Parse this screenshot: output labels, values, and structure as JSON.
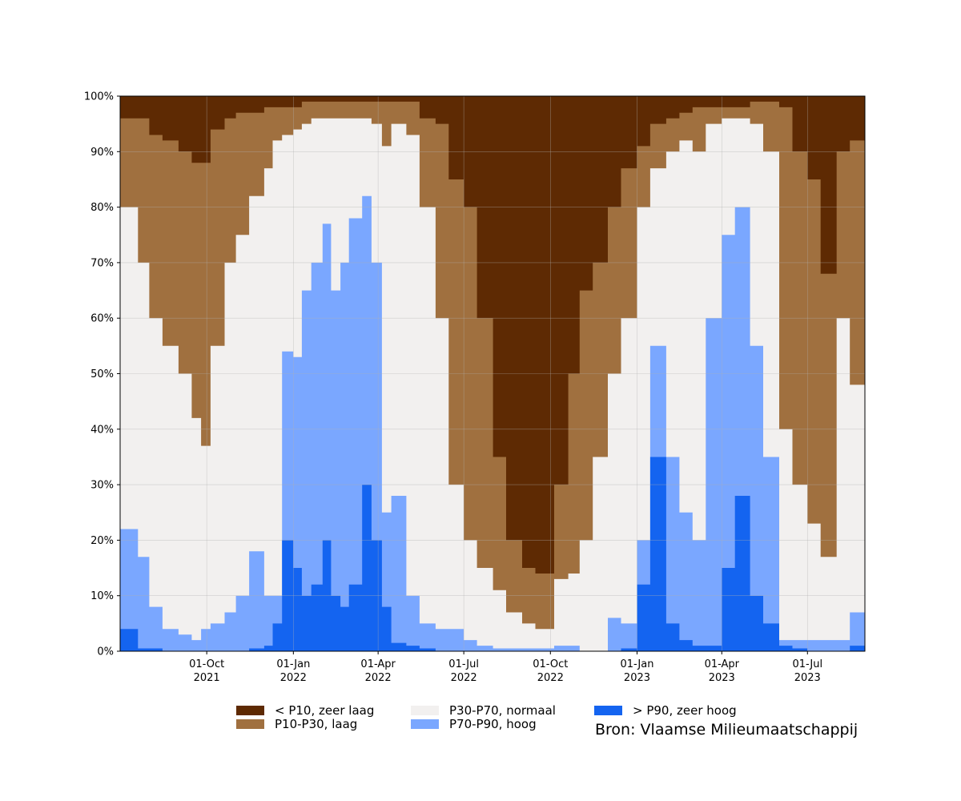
{
  "chart_data": {
    "type": "area",
    "stacked": true,
    "y_unit": "%",
    "ylim": [
      0,
      100
    ],
    "y_ticks": [
      "0%",
      "10%",
      "20%",
      "30%",
      "40%",
      "50%",
      "60%",
      "70%",
      "80%",
      "90%",
      "100%"
    ],
    "x_range": [
      "2021-07-01",
      "2023-08-31"
    ],
    "x_ticks": [
      {
        "date": "2021-10-01",
        "line1": "01-Oct",
        "line2": "2021"
      },
      {
        "date": "2022-01-01",
        "line1": "01-Jan",
        "line2": "2022"
      },
      {
        "date": "2022-04-01",
        "line1": "01-Apr",
        "line2": "2022"
      },
      {
        "date": "2022-07-01",
        "line1": "01-Jul",
        "line2": "2022"
      },
      {
        "date": "2022-10-01",
        "line1": "01-Oct",
        "line2": "2022"
      },
      {
        "date": "2023-01-01",
        "line1": "01-Jan",
        "line2": "2023"
      },
      {
        "date": "2023-04-01",
        "line1": "01-Apr",
        "line2": "2023"
      },
      {
        "date": "2023-07-01",
        "line1": "01-Jul",
        "line2": "2023"
      }
    ],
    "grid": true,
    "legend_position": "bottom",
    "cumulative_note": "values are cumulative upper boundaries (%) of each class, from the bottom",
    "x": [
      "2021-07-01",
      "2021-07-10",
      "2021-07-20",
      "2021-08-01",
      "2021-08-15",
      "2021-09-01",
      "2021-09-15",
      "2021-09-25",
      "2021-10-05",
      "2021-10-20",
      "2021-11-01",
      "2021-11-15",
      "2021-12-01",
      "2021-12-10",
      "2021-12-20",
      "2022-01-01",
      "2022-01-10",
      "2022-01-20",
      "2022-02-01",
      "2022-02-10",
      "2022-02-20",
      "2022-03-01",
      "2022-03-15",
      "2022-03-25",
      "2022-04-05",
      "2022-04-15",
      "2022-05-01",
      "2022-05-15",
      "2022-06-01",
      "2022-06-15",
      "2022-07-01",
      "2022-07-15",
      "2022-08-01",
      "2022-08-15",
      "2022-09-01",
      "2022-09-15",
      "2022-09-25",
      "2022-10-05",
      "2022-10-20",
      "2022-11-01",
      "2022-11-15",
      "2022-12-01",
      "2022-12-15",
      "2023-01-01",
      "2023-01-15",
      "2023-02-01",
      "2023-02-15",
      "2023-03-01",
      "2023-03-15",
      "2023-04-01",
      "2023-04-15",
      "2023-05-01",
      "2023-05-15",
      "2023-06-01",
      "2023-06-15",
      "2023-07-01",
      "2023-07-15",
      "2023-08-01",
      "2023-08-15",
      "2023-08-31"
    ],
    "series": [
      {
        "name": "> P90, zeer hoog",
        "color": "#1464f0",
        "values": [
          4,
          4,
          0.5,
          0.5,
          0,
          0,
          0,
          0,
          0,
          0,
          0,
          0.5,
          1,
          5,
          20,
          15,
          10,
          12,
          20,
          10,
          8,
          12,
          30,
          20,
          8,
          1.5,
          1,
          0.5,
          0,
          0,
          0,
          0,
          0,
          0,
          0,
          0,
          0,
          0,
          0,
          0,
          0,
          0,
          0.5,
          12,
          35,
          5,
          2,
          1,
          1,
          15,
          28,
          10,
          5,
          1,
          0.5,
          0,
          0,
          0,
          1,
          1
        ]
      },
      {
        "name": "P70-P90, hoog",
        "color": "#7aa7ff",
        "values": [
          22,
          22,
          17,
          8,
          4,
          3,
          2,
          4,
          5,
          7,
          10,
          18,
          10,
          10,
          54,
          53,
          65,
          70,
          77,
          65,
          70,
          78,
          82,
          70,
          25,
          28,
          10,
          5,
          4,
          4,
          2,
          1,
          0.5,
          0.5,
          0.5,
          0.5,
          0.5,
          1,
          1,
          0,
          0,
          6,
          5,
          20,
          55,
          35,
          25,
          20,
          60,
          75,
          80,
          55,
          35,
          2,
          2,
          2,
          2,
          2,
          7,
          10
        ]
      },
      {
        "name": "P30-P70, normaal",
        "color": "#f2f0ef",
        "values": [
          80,
          80,
          70,
          60,
          55,
          50,
          42,
          37,
          55,
          70,
          75,
          82,
          87,
          92,
          93,
          94,
          95,
          96,
          96,
          96,
          96,
          96,
          96,
          95,
          91,
          95,
          93,
          80,
          60,
          30,
          20,
          15,
          11,
          7,
          5,
          4,
          4,
          13,
          14,
          20,
          35,
          50,
          60,
          80,
          87,
          90,
          92,
          90,
          95,
          96,
          96,
          95,
          90,
          40,
          30,
          23,
          17,
          60,
          48,
          65
        ]
      },
      {
        "name": "P10-P30, laag",
        "color": "#a0703f",
        "values": [
          96,
          96,
          96,
          93,
          92,
          90,
          88,
          88,
          94,
          96,
          97,
          97,
          98,
          98,
          98,
          98,
          99,
          99,
          99,
          99,
          99,
          99,
          99,
          99,
          99,
          99,
          99,
          96,
          95,
          85,
          80,
          60,
          35,
          20,
          15,
          14,
          14,
          30,
          50,
          65,
          70,
          80,
          87,
          91,
          95,
          96,
          97,
          98,
          98,
          98,
          98,
          99,
          99,
          98,
          90,
          85,
          68,
          90,
          92,
          93
        ]
      },
      {
        "name": "< P10, zeer laag",
        "color": "#5e2a03",
        "values": [
          100,
          100,
          100,
          100,
          100,
          100,
          100,
          100,
          100,
          100,
          100,
          100,
          100,
          100,
          100,
          100,
          100,
          100,
          100,
          100,
          100,
          100,
          100,
          100,
          100,
          100,
          100,
          100,
          100,
          100,
          100,
          100,
          100,
          100,
          100,
          100,
          100,
          100,
          100,
          100,
          100,
          100,
          100,
          100,
          100,
          100,
          100,
          100,
          100,
          100,
          100,
          100,
          100,
          100,
          100,
          100,
          100,
          100,
          100,
          100
        ]
      }
    ],
    "legend": [
      {
        "label": "< P10, zeer laag",
        "color": "#5e2a03"
      },
      {
        "label": "P10-P30, laag",
        "color": "#a0703f"
      },
      {
        "label": "P30-P70, normaal",
        "color": "#f2f0ef"
      },
      {
        "label": "P70-P90, hoog",
        "color": "#7aa7ff"
      },
      {
        "label": "> P90, zeer hoog",
        "color": "#1464f0"
      }
    ]
  },
  "source": "Bron: Vlaamse Milieumaatschappij"
}
